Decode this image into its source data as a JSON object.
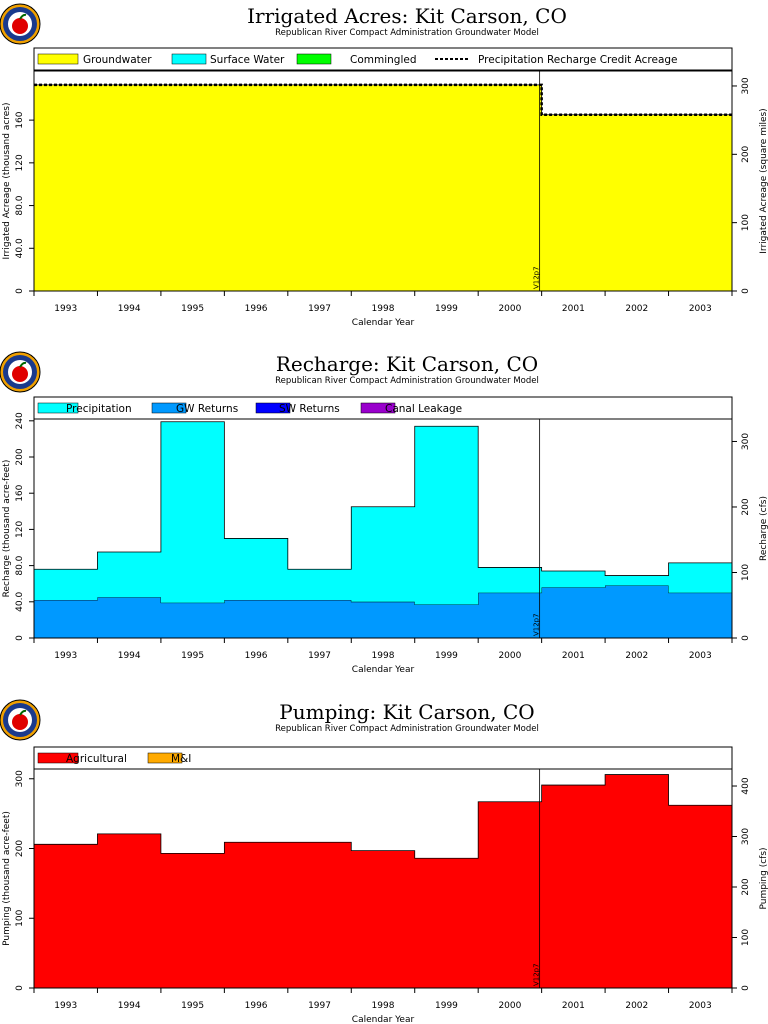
{
  "chart_data": [
    {
      "id": "acres",
      "type": "area",
      "title": "Irrigated Acres: Kit Carson, CO",
      "subtitle": "Republican River Compact Administration Groundwater Model",
      "ylabel": "Irrigated Acreage (thousand acres)",
      "y2label": "Irrigated Acreage (square miles)",
      "xlabel": "Calendar Year",
      "categories": [
        "1993",
        "1994",
        "1995",
        "1996",
        "1997",
        "1998",
        "1999",
        "2000",
        "2001",
        "2002",
        "2003"
      ],
      "ylim": [
        0,
        206
      ],
      "yticks": [
        0,
        40,
        80,
        120,
        160
      ],
      "ytick_labels": [
        "0",
        "40.0",
        "80.0",
        "120",
        "160"
      ],
      "y2lim": [
        0,
        321.9
      ],
      "y2ticks": [
        0,
        100,
        200,
        300
      ],
      "legend": [
        "Groundwater",
        "Surface Water",
        "Commingled",
        "Precipitation Recharge Credit Acreage"
      ],
      "legend_colors": [
        "#ffff00",
        "#00ffff",
        "#00ff00",
        "#000000"
      ],
      "series": [
        {
          "name": "Groundwater",
          "color": "#ffff00",
          "values": [
            193,
            193,
            193,
            193,
            193,
            193,
            193,
            193,
            165,
            165,
            165
          ]
        },
        {
          "name": "Surface Water",
          "color": "#00ffff",
          "values": [
            0,
            0,
            0,
            0,
            0,
            0,
            0,
            0,
            0,
            0,
            0
          ]
        },
        {
          "name": "Commingled",
          "color": "#00ff00",
          "values": [
            0,
            0,
            0,
            0,
            0,
            0,
            0,
            0,
            0,
            0,
            0
          ]
        }
      ],
      "line": {
        "name": "Precipitation Recharge Credit Acreage",
        "values": [
          193,
          193,
          193,
          193,
          193,
          193,
          193,
          193,
          165,
          165,
          165
        ]
      },
      "marker": {
        "label": "V12p7",
        "at_year_index": 8
      }
    },
    {
      "id": "recharge",
      "type": "area",
      "title": "Recharge: Kit Carson, CO",
      "subtitle": "Republican River Compact Administration Groundwater Model",
      "ylabel": "Recharge (thousand acre-feet)",
      "y2label": "Recharge (cfs)",
      "xlabel": "Calendar Year",
      "categories": [
        "1993",
        "1994",
        "1995",
        "1996",
        "1997",
        "1998",
        "1999",
        "2000",
        "2001",
        "2002",
        "2003"
      ],
      "ylim": [
        0,
        242
      ],
      "yticks": [
        0,
        40,
        80,
        120,
        160,
        200,
        240
      ],
      "ytick_labels": [
        "0",
        "40.0",
        "80.0",
        "120",
        "160",
        "200",
        "240"
      ],
      "y2lim": [
        0,
        334.3
      ],
      "y2ticks": [
        0,
        100,
        200,
        300
      ],
      "legend": [
        "Precipitation",
        "GW Returns",
        "SW Returns",
        "Canal Leakage"
      ],
      "legend_colors": [
        "#00ffff",
        "#0099ff",
        "#0000ff",
        "#9900cc"
      ],
      "series": [
        {
          "name": "GW Returns",
          "color": "#0099ff",
          "values": [
            42,
            45,
            39,
            42,
            42,
            40,
            37,
            50,
            56,
            58,
            50
          ]
        },
        {
          "name": "Precipitation",
          "color": "#00ffff",
          "values": [
            34,
            50,
            200,
            68,
            34,
            105,
            197,
            28,
            18,
            11,
            33
          ]
        },
        {
          "name": "SW Returns",
          "color": "#0000ff",
          "values": [
            0,
            0,
            0,
            0,
            0,
            0,
            0,
            0,
            0,
            0,
            0
          ]
        },
        {
          "name": "Canal Leakage",
          "color": "#9900cc",
          "values": [
            0,
            0,
            0,
            0,
            0,
            0,
            0,
            0,
            0,
            0,
            0
          ]
        }
      ],
      "marker": {
        "label": "V12p7",
        "at_year_index": 8
      }
    },
    {
      "id": "pumping",
      "type": "area",
      "title": "Pumping: Kit Carson, CO",
      "subtitle": "Republican River Compact Administration Groundwater Model",
      "ylabel": "Pumping (thousand acre-feet)",
      "y2label": "Pumping (cfs)",
      "xlabel": "Calendar Year",
      "categories": [
        "1993",
        "1994",
        "1995",
        "1996",
        "1997",
        "1998",
        "1999",
        "2000",
        "2001",
        "2002",
        "2003"
      ],
      "ylim": [
        0,
        314
      ],
      "yticks": [
        0,
        100,
        200,
        300
      ],
      "ytick_labels": [
        "0",
        "100",
        "200",
        "300"
      ],
      "y2lim": [
        0,
        433.7
      ],
      "y2ticks": [
        0,
        100,
        200,
        300,
        400
      ],
      "legend": [
        "Agricultural",
        "M&I"
      ],
      "legend_colors": [
        "#ff0000",
        "#ffaa00"
      ],
      "series": [
        {
          "name": "Agricultural",
          "color": "#ff0000",
          "values": [
            206,
            221,
            193,
            209,
            209,
            197,
            186,
            267,
            291,
            306,
            262
          ]
        },
        {
          "name": "M&I",
          "color": "#ffaa00",
          "values": [
            0,
            0,
            0,
            0,
            0,
            0,
            0,
            0,
            0,
            0,
            0
          ]
        }
      ],
      "marker": {
        "label": "V12p7",
        "at_year_index": 8
      }
    }
  ]
}
